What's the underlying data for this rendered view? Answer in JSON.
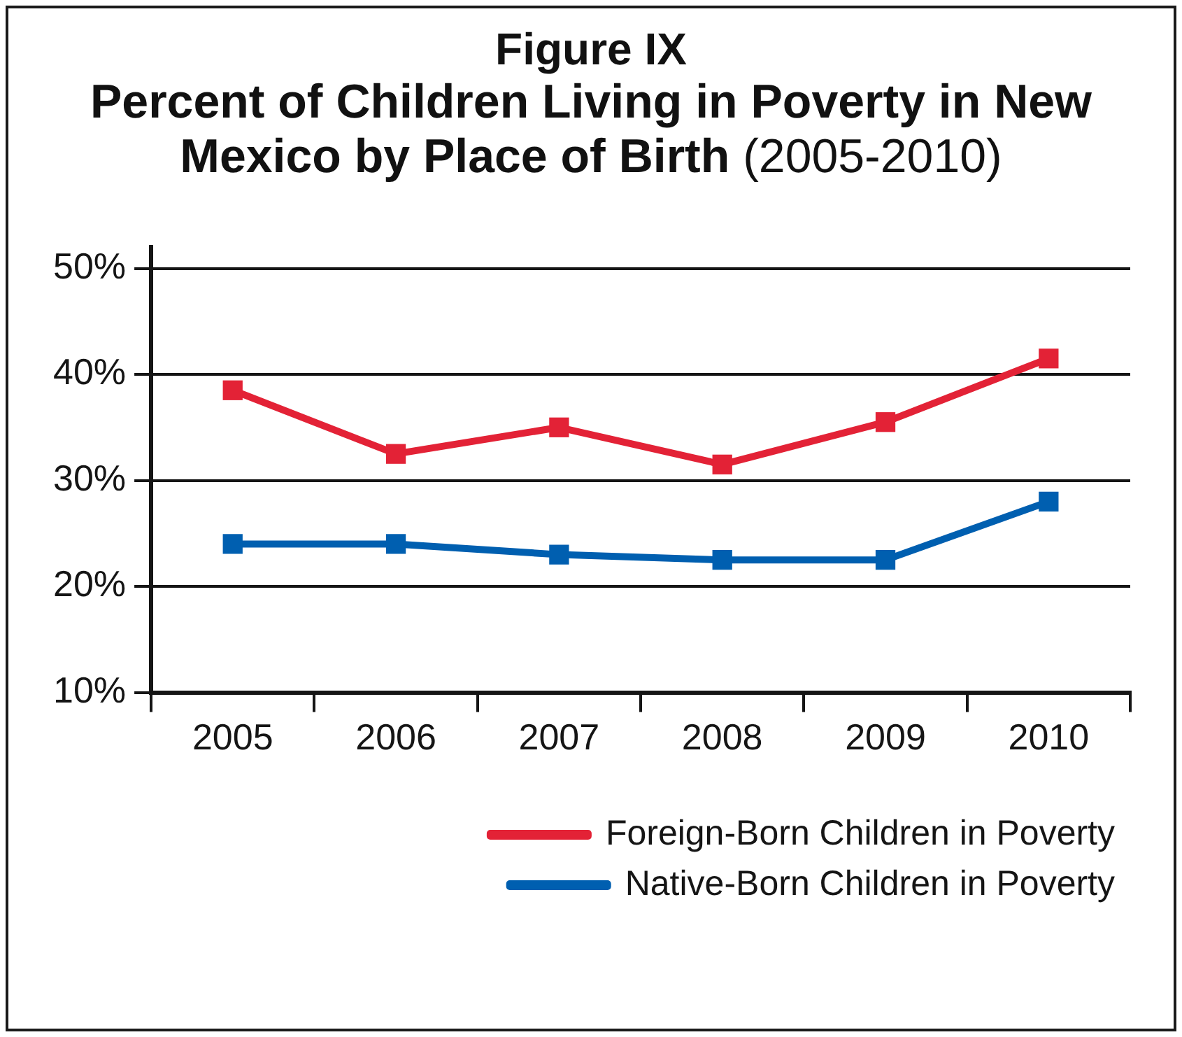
{
  "chart_data": {
    "type": "line",
    "title": "Figure IX",
    "subtitle": "Percent of Children Living in Poverty in New Mexico by Place of Birth (2005-2010)",
    "categories": [
      "2005",
      "2006",
      "2007",
      "2008",
      "2009",
      "2010"
    ],
    "series": [
      {
        "name": "Foreign-Born Children in Poverty",
        "color": "#e32236",
        "values": [
          38.5,
          32.5,
          35,
          31.5,
          35.5,
          41.5
        ]
      },
      {
        "name": "Native-Born Children in Poverty",
        "color": "#005fb0",
        "values": [
          24,
          24,
          23,
          22.5,
          22.5,
          28
        ]
      }
    ],
    "ylim": [
      10,
      52
    ],
    "yticks": [
      {
        "value": 10,
        "label": "10%"
      },
      {
        "value": 20,
        "label": "20%"
      },
      {
        "value": 30,
        "label": "30%"
      },
      {
        "value": 40,
        "label": "40%"
      },
      {
        "value": 50,
        "label": "50%"
      }
    ],
    "grid": "y",
    "legend": "bottom right",
    "marker": "square",
    "line_style": "solid"
  }
}
